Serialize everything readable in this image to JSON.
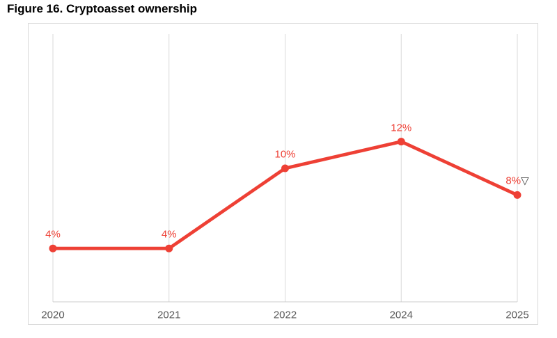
{
  "page": {
    "title": "Figure 16. Cryptoasset ownership"
  },
  "chart_data": {
    "type": "line",
    "title": "Figure 16. Cryptoasset ownership",
    "categories": [
      "2020",
      "2021",
      "2022",
      "2024",
      "2025"
    ],
    "series": [
      {
        "name": "Cryptoasset ownership",
        "values": [
          4,
          4,
          10,
          12,
          8
        ],
        "point_labels": [
          "4%",
          "4%",
          "10%",
          "12%",
          "8%"
        ],
        "color": "#ee4035"
      }
    ],
    "last_point_annotation": "▽",
    "xlabel": "",
    "ylabel": "",
    "ylim": [
      0,
      20
    ],
    "grid": "vertical-only",
    "legend": "none",
    "colors": {
      "line": "#ee4035",
      "marker": "#ee4035",
      "data_label": "#ee4035",
      "gridline": "#d9d9d9",
      "axis_line": "#cccccc",
      "frame_border": "#d9d9d9",
      "tick_label": "#595959",
      "annotation": "#404040",
      "title": "#000000",
      "background": "#ffffff"
    }
  }
}
